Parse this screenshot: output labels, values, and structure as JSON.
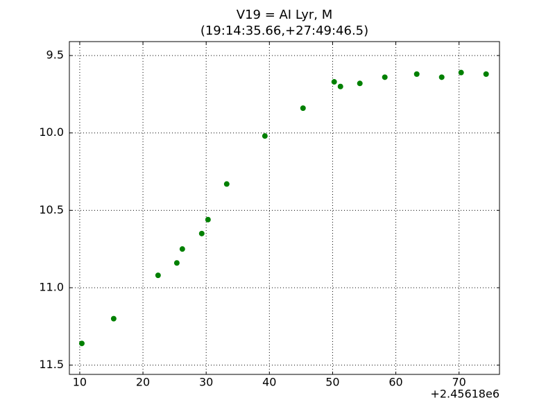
{
  "chart_data": {
    "type": "scatter",
    "title": "V19 = AI Lyr, M",
    "subtitle": "(19:14:35.66,+27:49:46.5)",
    "x_offset_label": "+2.45618e6",
    "color": "#008000",
    "grid": true,
    "x": [
      10.33,
      15.37,
      22.39,
      25.36,
      26.23,
      29.3,
      30.29,
      33.25,
      39.29,
      45.32,
      50.25,
      51.24,
      54.31,
      58.26,
      63.31,
      67.26,
      70.33,
      74.28
    ],
    "values": [
      11.36,
      11.2,
      10.92,
      10.84,
      10.75,
      10.65,
      10.56,
      10.33,
      10.02,
      9.84,
      9.67,
      9.7,
      9.68,
      9.64,
      9.62,
      9.64,
      9.61,
      9.62
    ],
    "xlim": [
      8.36,
      76.4
    ],
    "xticks": [
      10,
      20,
      30,
      40,
      50,
      60,
      70
    ],
    "ylim": [
      11.56,
      9.41
    ],
    "yticks": [
      9.5,
      {
        "value": 10,
        "label": "10.0"
      },
      10.5,
      {
        "value": 11,
        "label": "11.0"
      },
      11.5
    ]
  }
}
